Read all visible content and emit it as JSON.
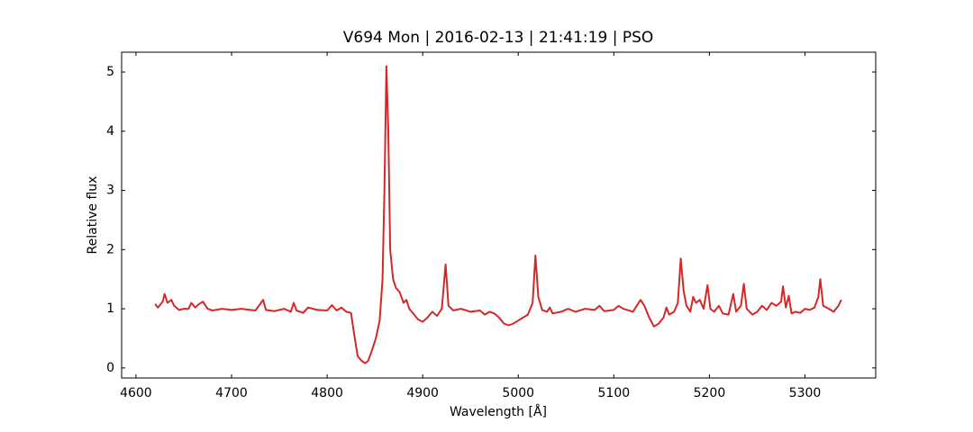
{
  "chart_data": {
    "type": "line",
    "title": "V694 Mon | 2016-02-13 | 21:41:19 | PSO",
    "xlabel": "Wavelength [Å]",
    "ylabel": "Relative flux",
    "xlim": [
      4585,
      5374
    ],
    "ylim": [
      -0.17,
      5.335
    ],
    "xticks": [
      4600,
      4700,
      4800,
      4900,
      5000,
      5100,
      5200,
      5300
    ],
    "yticks": [
      0,
      1,
      2,
      3,
      4,
      5
    ],
    "grid": false,
    "x": [
      4620,
      4623,
      4628,
      4630,
      4633,
      4637,
      4640,
      4645,
      4650,
      4655,
      4658,
      4662,
      4666,
      4670,
      4675,
      4680,
      4690,
      4700,
      4710,
      4720,
      4725,
      4730,
      4733,
      4736,
      4745,
      4755,
      4762,
      4765,
      4768,
      4775,
      4780,
      4790,
      4800,
      4805,
      4810,
      4815,
      4820,
      4825,
      4828,
      4832,
      4836,
      4840,
      4843,
      4847,
      4851,
      4855,
      4858,
      4860,
      4862,
      4864,
      4866,
      4869,
      4872,
      4876,
      4880,
      4883,
      4886,
      4890,
      4895,
      4900,
      4905,
      4910,
      4915,
      4920,
      4924,
      4927,
      4932,
      4940,
      4950,
      4960,
      4965,
      4970,
      4975,
      4980,
      4985,
      4990,
      4995,
      5000,
      5005,
      5010,
      5015,
      5018,
      5021,
      5025,
      5030,
      5033,
      5036,
      5045,
      5052,
      5060,
      5070,
      5080,
      5085,
      5090,
      5100,
      5105,
      5110,
      5120,
      5128,
      5132,
      5137,
      5142,
      5147,
      5152,
      5155,
      5158,
      5163,
      5167,
      5170,
      5173,
      5176,
      5180,
      5183,
      5186,
      5190,
      5194,
      5198,
      5201,
      5205,
      5210,
      5214,
      5220,
      5225,
      5228,
      5233,
      5236,
      5239,
      5245,
      5250,
      5255,
      5260,
      5265,
      5270,
      5275,
      5277,
      5280,
      5283,
      5286,
      5290,
      5295,
      5300,
      5305,
      5310,
      5314,
      5316,
      5319,
      5325,
      5330,
      5335,
      5338
    ],
    "series": [
      {
        "color": "#d62728",
        "values": [
          1.08,
          1.02,
          1.12,
          1.25,
          1.1,
          1.15,
          1.05,
          0.98,
          1.0,
          1.0,
          1.1,
          1.02,
          1.08,
          1.12,
          1.0,
          0.97,
          1.0,
          0.98,
          1.0,
          0.98,
          0.97,
          1.08,
          1.15,
          0.98,
          0.96,
          1.0,
          0.95,
          1.1,
          0.97,
          0.93,
          1.02,
          0.98,
          0.97,
          1.06,
          0.97,
          1.02,
          0.95,
          0.93,
          0.6,
          0.2,
          0.12,
          0.08,
          0.12,
          0.3,
          0.5,
          0.8,
          1.5,
          3.0,
          5.1,
          4.0,
          2.0,
          1.5,
          1.35,
          1.28,
          1.1,
          1.15,
          1.0,
          0.92,
          0.82,
          0.78,
          0.85,
          0.95,
          0.88,
          1.0,
          1.75,
          1.05,
          0.97,
          1.0,
          0.95,
          0.97,
          0.9,
          0.95,
          0.92,
          0.85,
          0.75,
          0.72,
          0.75,
          0.8,
          0.85,
          0.9,
          1.1,
          1.9,
          1.2,
          0.98,
          0.95,
          1.02,
          0.92,
          0.95,
          1.0,
          0.95,
          1.0,
          0.98,
          1.05,
          0.96,
          0.98,
          1.05,
          1.0,
          0.95,
          1.15,
          1.05,
          0.85,
          0.7,
          0.75,
          0.85,
          1.02,
          0.9,
          0.95,
          1.1,
          1.85,
          1.3,
          1.05,
          0.95,
          1.2,
          1.1,
          1.15,
          1.0,
          1.4,
          1.0,
          0.95,
          1.05,
          0.92,
          0.9,
          1.25,
          0.95,
          1.05,
          1.42,
          1.0,
          0.9,
          0.95,
          1.05,
          0.98,
          1.1,
          1.05,
          1.12,
          1.38,
          1.02,
          1.22,
          0.92,
          0.95,
          0.93,
          1.0,
          0.98,
          1.02,
          1.2,
          1.5,
          1.05,
          1.0,
          0.95,
          1.05,
          1.15
        ]
      }
    ]
  }
}
